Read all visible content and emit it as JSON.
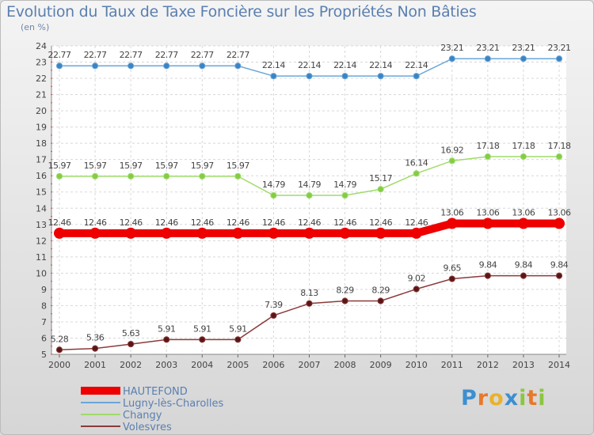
{
  "chart_data": {
    "type": "line",
    "title": "Evolution du Taux de Taxe Foncière sur les Propriétés Non Bâties",
    "subtitle": "(en %)",
    "x": [
      "2000",
      "2001",
      "2002",
      "2003",
      "2004",
      "2005",
      "2006",
      "2007",
      "2008",
      "2009",
      "2010",
      "2011",
      "2012",
      "2013",
      "2014"
    ],
    "ylim": [
      5,
      24
    ],
    "yticks": [
      5,
      6,
      7,
      8,
      9,
      10,
      11,
      12,
      13,
      14,
      15,
      16,
      17,
      18,
      19,
      20,
      21,
      22,
      23,
      24
    ],
    "series": [
      {
        "name": "HAUTEFOND",
        "color": "#ee0000",
        "values": [
          12.46,
          12.46,
          12.46,
          12.46,
          12.46,
          12.46,
          12.46,
          12.46,
          12.46,
          12.46,
          12.46,
          13.06,
          13.06,
          13.06,
          13.06
        ],
        "labels": [
          "12.46",
          "12.46",
          "12.46",
          "12.46",
          "12.46",
          "12.46",
          "12.46",
          "12.46",
          "12.46",
          "12.46",
          "12.46",
          "13.06",
          "13.06",
          "13.06",
          "13.06"
        ],
        "thick": true
      },
      {
        "name": "Lugny-lès-Charolles",
        "color": "#6aa6d8",
        "dot": "#3b84c4",
        "values": [
          22.77,
          22.77,
          22.77,
          22.77,
          22.77,
          22.77,
          22.14,
          22.14,
          22.14,
          22.14,
          22.14,
          23.21,
          23.21,
          23.21,
          23.21
        ],
        "labels": [
          "22.77",
          "22.77",
          "22.77",
          "22.77",
          "22.77",
          "22.77",
          "22.14",
          "22.14",
          "22.14",
          "22.14",
          "22.14",
          "23.21",
          "23.21",
          "23.21",
          "23.21"
        ]
      },
      {
        "name": "Changy",
        "color": "#9fdc6a",
        "dot": "#84cc46",
        "values": [
          15.97,
          15.97,
          15.97,
          15.97,
          15.97,
          15.97,
          14.79,
          14.79,
          14.79,
          15.17,
          16.14,
          16.92,
          17.18,
          17.18,
          17.18
        ],
        "labels": [
          "15.97",
          "15.97",
          "15.97",
          "15.97",
          "15.97",
          "15.97",
          "14.79",
          "14.79",
          "14.79",
          "15.17",
          "16.14",
          "16.92",
          "17.18",
          "17.18",
          "17.18"
        ]
      },
      {
        "name": "Volesvres",
        "color": "#8c3a3a",
        "dot": "#5a1616",
        "values": [
          5.28,
          5.36,
          5.63,
          5.91,
          5.91,
          5.91,
          7.39,
          8.13,
          8.29,
          8.29,
          9.02,
          9.65,
          9.84,
          9.84,
          9.84
        ],
        "labels": [
          "5.28",
          "5.36",
          "5.63",
          "5.91",
          "5.91",
          "5.91",
          "7.39",
          "8.13",
          "8.29",
          "8.29",
          "9.02",
          "9.65",
          "9.84",
          "9.84",
          "9.84"
        ]
      }
    ]
  },
  "logo": {
    "letters": [
      "P",
      "r",
      "o",
      "x",
      "i",
      "t",
      "i"
    ]
  }
}
